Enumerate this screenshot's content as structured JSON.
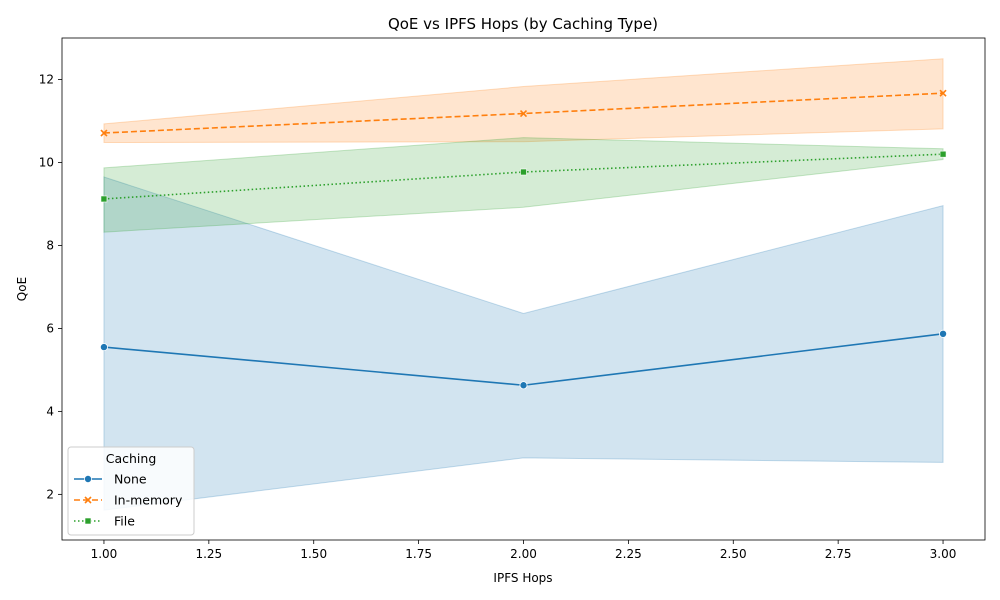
{
  "chart_data": {
    "type": "line",
    "title": "QoE vs IPFS Hops (by Caching Type)",
    "xlabel": "IPFS Hops",
    "ylabel": "QoE",
    "xlim": [
      0.9,
      3.1
    ],
    "ylim": [
      0.9,
      13.0
    ],
    "xticks": [
      "1.00",
      "1.25",
      "1.50",
      "1.75",
      "2.00",
      "2.25",
      "2.50",
      "2.75",
      "3.00"
    ],
    "xtick_values": [
      1.0,
      1.25,
      1.5,
      1.75,
      2.0,
      2.25,
      2.5,
      2.75,
      3.0
    ],
    "yticks": [
      "2",
      "4",
      "6",
      "8",
      "10",
      "12"
    ],
    "ytick_values": [
      2,
      4,
      6,
      8,
      10,
      12
    ],
    "grid": false,
    "legend": {
      "title": "Caching",
      "placement": "lower-left"
    },
    "x": [
      1,
      2,
      3
    ],
    "series": [
      {
        "name": "None",
        "color": "#1f77b4",
        "dash": "solid",
        "marker": "circle",
        "values": [
          5.55,
          4.63,
          5.87
        ],
        "ci_low": [
          1.62,
          2.88,
          2.77
        ],
        "ci_high": [
          9.65,
          6.36,
          8.96
        ]
      },
      {
        "name": "In-memory",
        "color": "#ff7f0e",
        "dash": "dashed",
        "marker": "x",
        "values": [
          10.71,
          11.18,
          11.67
        ],
        "ci_low": [
          10.48,
          10.5,
          10.81
        ],
        "ci_high": [
          10.93,
          11.83,
          12.5
        ]
      },
      {
        "name": "File",
        "color": "#2ca02c",
        "dash": "dotted",
        "marker": "square",
        "values": [
          9.12,
          9.77,
          10.2
        ],
        "ci_low": [
          8.32,
          8.92,
          10.07
        ],
        "ci_high": [
          9.87,
          10.6,
          10.33
        ]
      }
    ]
  }
}
